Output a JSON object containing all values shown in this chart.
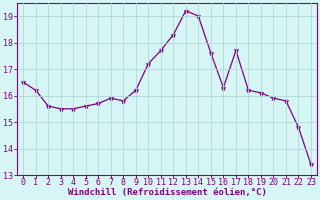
{
  "x": [
    0,
    1,
    2,
    3,
    4,
    5,
    6,
    7,
    8,
    9,
    10,
    11,
    12,
    13,
    14,
    15,
    16,
    17,
    18,
    19,
    20,
    21,
    22,
    23
  ],
  "y": [
    16.5,
    16.2,
    15.6,
    15.5,
    15.5,
    15.6,
    15.7,
    15.9,
    15.8,
    16.2,
    17.2,
    17.7,
    18.3,
    19.2,
    19.0,
    17.6,
    16.3,
    17.7,
    16.2,
    16.1,
    15.9,
    15.8,
    14.8,
    13.4
  ],
  "line_color": "#800080",
  "marker": "*",
  "marker_size": 3.5,
  "bg_color": "#d6f5f5",
  "grid_color": "#b0d8d8",
  "xlabel": "Windchill (Refroidissement éolien,°C)",
  "ylim": [
    13,
    19.5
  ],
  "xlim": [
    -0.5,
    23.5
  ],
  "yticks": [
    13,
    14,
    15,
    16,
    17,
    18,
    19
  ],
  "xticks": [
    0,
    1,
    2,
    3,
    4,
    5,
    6,
    7,
    8,
    9,
    10,
    11,
    12,
    13,
    14,
    15,
    16,
    17,
    18,
    19,
    20,
    21,
    22,
    23
  ],
  "tick_color": "#800080",
  "label_color": "#800080",
  "axis_color": "#800080",
  "xlabel_fontsize": 6.5,
  "tick_fontsize": 6.0,
  "linewidth": 0.9
}
